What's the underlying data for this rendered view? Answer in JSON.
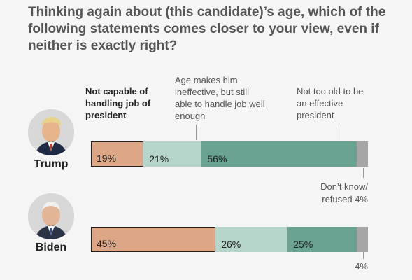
{
  "chart_data": {
    "type": "bar",
    "orientation": "horizontal-stacked",
    "title": "Thinking again about (this candidate)’s age, which of the following statements comes closer to your view, even if neither is exactly right?",
    "categories": [
      "Not capable of handling job of president",
      "Age makes him ineffective, but still able to handle job well enough",
      "Not too old to be an effective president",
      "Don’t know/ refused"
    ],
    "colors": [
      "#dca687",
      "#b7d6cb",
      "#6ba393",
      "#a6a6a6"
    ],
    "xlim": [
      0,
      100
    ],
    "series": [
      {
        "name": "Trump",
        "values": [
          19,
          21,
          56,
          4
        ],
        "labels": [
          "19%",
          "21%",
          "56%",
          ""
        ],
        "note": "Don’t know/ refused 4%"
      },
      {
        "name": "Biden",
        "values": [
          45,
          26,
          25,
          4
        ],
        "labels": [
          "45%",
          "26%",
          "25%",
          ""
        ],
        "note": "4%"
      }
    ]
  },
  "category_labels": {
    "c1": "Not capable of handling job of president",
    "c2": "Age makes him ineffective, but still able to handle job well enough",
    "c3": "Not too old to be an effective president"
  },
  "notes": {
    "trump_line1": "Don’t know/",
    "trump_line2": "refused 4%",
    "biden": "4%"
  },
  "candidates": {
    "trump": "Trump",
    "biden": "Biden"
  },
  "icons": {
    "trump_avatar": "trump-portrait",
    "biden_avatar": "biden-portrait"
  }
}
